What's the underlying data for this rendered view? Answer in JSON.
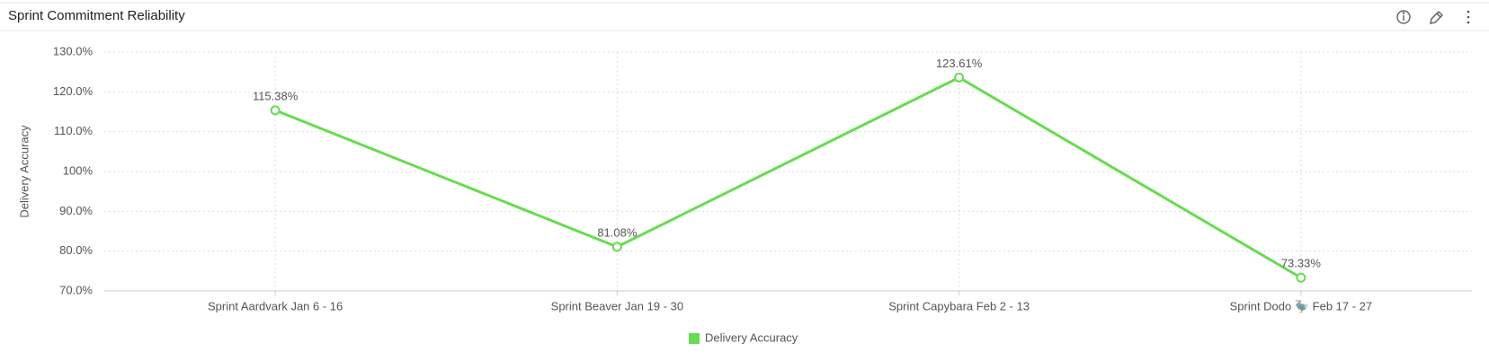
{
  "chart_data": {
    "type": "line",
    "title": "Sprint Commitment Reliability",
    "y_label": "Delivery Accuracy",
    "categories": [
      "Sprint Aardvark Jan 6 - 16",
      "Sprint Beaver Jan 19 - 30",
      "Sprint Capybara Feb 2 - 13",
      "Sprint Dodo 🦤 Feb 17 - 27"
    ],
    "series": [
      {
        "name": "Delivery Accuracy",
        "color": "#66dd4f",
        "values": [
          115.38,
          81.08,
          123.61,
          73.33
        ],
        "value_labels": [
          "115.38%",
          "81.08%",
          "123.61%",
          "73.33%"
        ]
      }
    ],
    "ylim": [
      70,
      130
    ],
    "yticks": [
      {
        "value": 70,
        "label": "70.0%"
      },
      {
        "value": 80,
        "label": "80.0%"
      },
      {
        "value": 90,
        "label": "90.0%"
      },
      {
        "value": 100,
        "label": "100%"
      },
      {
        "value": 110,
        "label": "110.0%"
      },
      {
        "value": 120,
        "label": "120.0%"
      },
      {
        "value": 130,
        "label": "130.0%"
      }
    ],
    "grid": true,
    "legend": "bottom"
  }
}
